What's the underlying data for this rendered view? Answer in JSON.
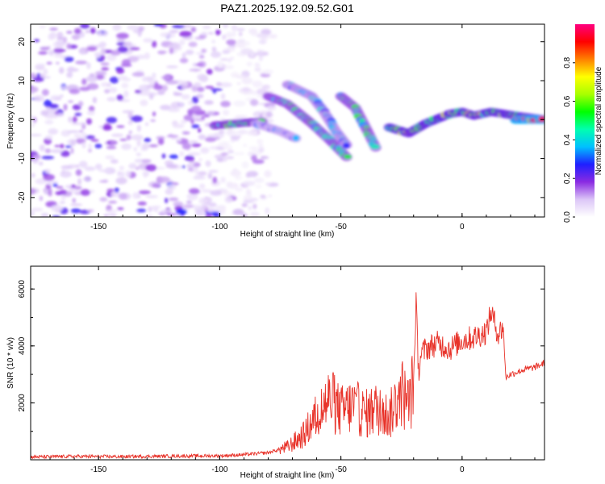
{
  "figure": {
    "title": "PAZ1.2025.192.09.52.G01"
  },
  "chart_data": [
    {
      "type": "heatmap",
      "title": "PAZ1.2025.192.09.52.G01",
      "xlabel": "Height of straight line (km)",
      "ylabel": "Frequency (Hz)",
      "xlim": [
        -178,
        34
      ],
      "ylim": [
        -25,
        24.5
      ],
      "xticks": [
        -150,
        -100,
        -50,
        0
      ],
      "yticks": [
        -20,
        -10,
        0,
        10,
        20
      ],
      "colorbar": {
        "label": "Normalized spectral amplitude",
        "range": [
          0,
          1
        ],
        "ticks": [
          0.0,
          0.2,
          0.4,
          0.6,
          0.8
        ],
        "colors": [
          "#ffffff",
          "#dcc6f7",
          "#8a2be2",
          "#1f1fff",
          "#00c0ff",
          "#00ffb0",
          "#00ff00",
          "#a8ff00",
          "#ffff00",
          "#ff8000",
          "#ff0000",
          "#ff0080"
        ]
      },
      "features": [
        {
          "name": "noise-field",
          "x_range": [
            -178,
            -90
          ],
          "y_range": [
            -25,
            24.5
          ],
          "level": 0.12
        },
        {
          "name": "ridge",
          "points": [
            [
              -102,
              -1.5
            ],
            [
              -90,
              -0.8
            ],
            [
              -82,
              -0.5
            ]
          ],
          "level": 0.5
        },
        {
          "name": "ridge",
          "points": [
            [
              -80,
              6
            ],
            [
              -72,
              4
            ],
            [
              -62,
              -1
            ],
            [
              -55,
              -5
            ],
            [
              -47,
              -10
            ]
          ],
          "level": 0.45
        },
        {
          "name": "ridge",
          "points": [
            [
              -85,
              -1
            ],
            [
              -75,
              -3
            ],
            [
              -68,
              -5
            ]
          ],
          "level": 0.3
        },
        {
          "name": "ridge",
          "points": [
            [
              -72,
              9
            ],
            [
              -62,
              6
            ],
            [
              -57,
              2
            ],
            [
              -52,
              -3
            ],
            [
              -47,
              -7
            ]
          ],
          "level": 0.35
        },
        {
          "name": "ridge",
          "points": [
            [
              -50,
              6
            ],
            [
              -44,
              3
            ],
            [
              -39,
              -3
            ],
            [
              -35,
              -8
            ]
          ],
          "level": 0.45
        },
        {
          "name": "ridge",
          "points": [
            [
              -30,
              -2
            ],
            [
              -22,
              -3.5
            ],
            [
              -15,
              -1
            ],
            [
              -5,
              1.5
            ],
            [
              0,
              2
            ],
            [
              5,
              1
            ],
            [
              12,
              2
            ],
            [
              22,
              1
            ],
            [
              34,
              0
            ]
          ],
          "level": 0.6
        },
        {
          "name": "ridge",
          "points": [
            [
              22,
              0
            ],
            [
              34,
              0
            ]
          ],
          "level": 1.0
        }
      ]
    },
    {
      "type": "line",
      "xlabel": "Height of straight line (km)",
      "ylabel": "SNR (10 * v/v)",
      "xlim": [
        -178,
        34
      ],
      "ylim": [
        0,
        6800
      ],
      "xticks": [
        -150,
        -100,
        -50,
        0
      ],
      "yticks": [
        2000,
        4000,
        6000
      ],
      "series": [
        {
          "color": "#e8332a",
          "x": [
            -178,
            -160,
            -140,
            -120,
            -100,
            -90,
            -80,
            -72,
            -68,
            -65,
            -62,
            -58,
            -55,
            -50,
            -45,
            -40,
            -35,
            -30,
            -27,
            -25,
            -22,
            -20,
            -19,
            -18,
            -17,
            -15,
            -10,
            -5,
            0,
            5,
            10,
            12,
            15,
            17,
            18,
            20,
            25,
            30,
            34
          ],
          "values": [
            100,
            120,
            110,
            130,
            140,
            180,
            250,
            450,
            700,
            900,
            1300,
            1800,
            2100,
            1700,
            1900,
            1600,
            1800,
            1500,
            2100,
            2400,
            1900,
            2700,
            5500,
            3100,
            3700,
            3900,
            4100,
            3900,
            4200,
            4300,
            4500,
            5200,
            4400,
            4700,
            2900,
            3000,
            3150,
            3250,
            3400
          ]
        }
      ]
    }
  ]
}
